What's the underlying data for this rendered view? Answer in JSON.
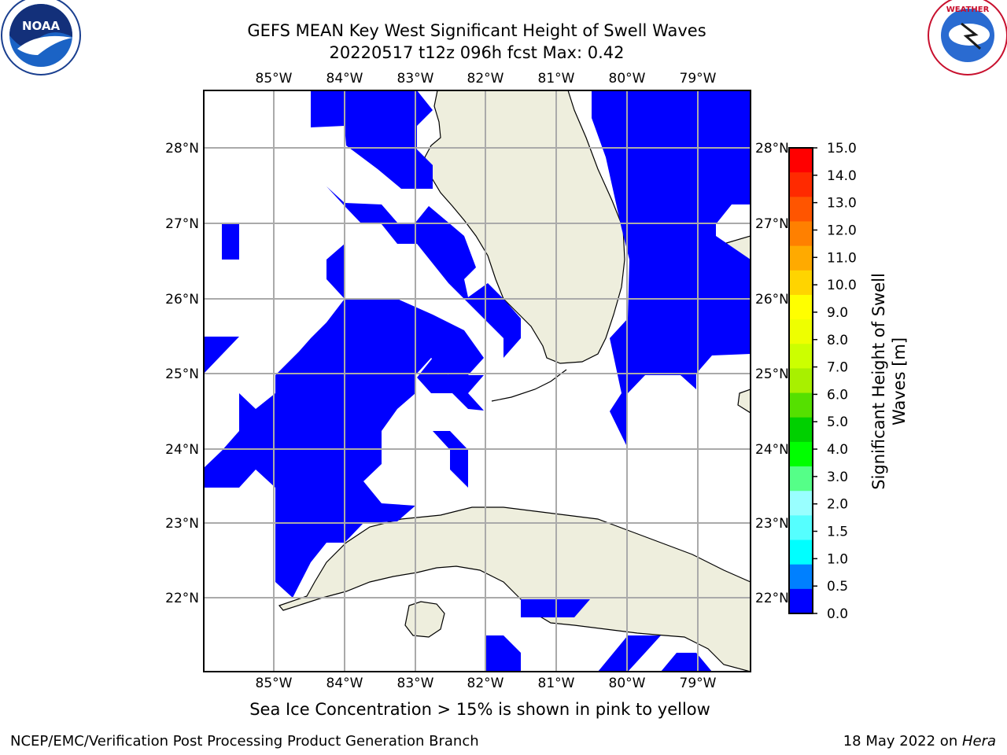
{
  "title": {
    "line1": "GEFS MEAN Key West Significant Height of Swell Waves",
    "line2": "20220517 t12z 096h fcst   Max: 0.42"
  },
  "logos": {
    "left": {
      "name": "NOAA",
      "ring_text": "NATIONAL OCEANIC AND ATMOSPHERIC ADMINISTRATION · U.S. DEPARTMENT OF COMMERCE"
    },
    "right": {
      "name": "NATIONAL WEATHER SERVICE"
    }
  },
  "map": {
    "lon_ticks": [
      "85°W",
      "84°W",
      "83°W",
      "82°W",
      "81°W",
      "80°W",
      "79°W"
    ],
    "lat_ticks": [
      "28°N",
      "27°N",
      "26°N",
      "25°N",
      "24°N",
      "23°N",
      "22°N"
    ],
    "field_color": "#0000ff",
    "land_color": "#eeeedd"
  },
  "colorbar": {
    "label_line1": "Significant Height of Swell",
    "label_line2": "Waves [m]",
    "ticks": [
      "15.0",
      "14.0",
      "13.0",
      "12.0",
      "11.0",
      "10.0",
      "9.0",
      "8.0",
      "7.0",
      "6.0",
      "5.0",
      "4.0",
      "3.0",
      "2.0",
      "1.5",
      "1.0",
      "0.5",
      "0.0"
    ],
    "colors": [
      "#ff0000",
      "#ff2a00",
      "#ff5500",
      "#ff8000",
      "#ffaa00",
      "#ffd400",
      "#ffff00",
      "#eeff00",
      "#ccff00",
      "#a8f000",
      "#55e000",
      "#00d000",
      "#00ff00",
      "#55ff88",
      "#99ffff",
      "#55ffff",
      "#00ffff",
      "#0080ff",
      "#0000ff"
    ]
  },
  "ice_note": "Sea Ice Concentration > 15% is shown in pink to yellow",
  "footer": {
    "left": "NCEP/EMC/Verification Post Processing Product Generation Branch",
    "right_prefix": "18 May 2022 on ",
    "right_italic": "Hera"
  }
}
